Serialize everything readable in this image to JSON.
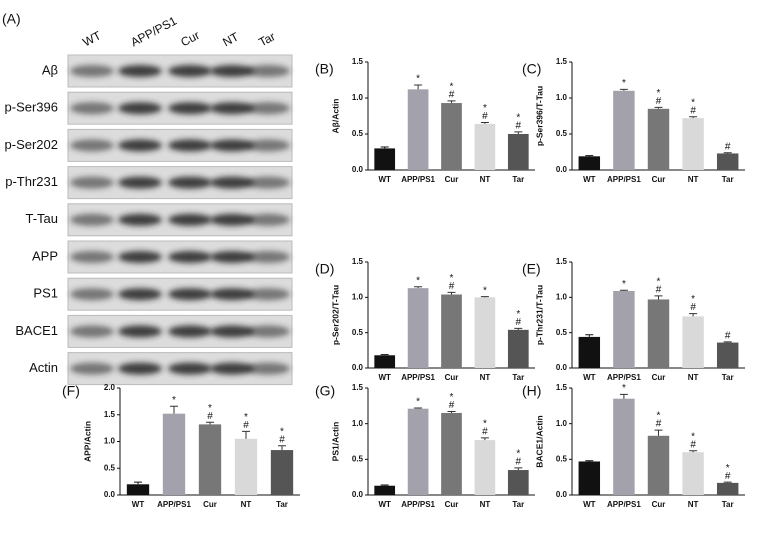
{
  "blot": {
    "panel": "(A)",
    "lanes": [
      "WT",
      "APP/PS1",
      "Cur",
      "NT",
      "Tar"
    ],
    "rows": [
      "Aβ",
      "p-Ser396",
      "p-Ser202",
      "p-Thr231",
      "T-Tau",
      "APP",
      "PS1",
      "BACE1",
      "Actin"
    ]
  },
  "chart_data": [
    {
      "type": "bar",
      "panel": "(B)",
      "ylabel": "Aβ/Actin",
      "categories": [
        "WT",
        "APP/PS1",
        "Cur",
        "NT",
        "Tar"
      ],
      "colors": [
        "#111111",
        "#a3a1ab",
        "#777777",
        "#d9d9d9",
        "#555555"
      ],
      "values": [
        0.3,
        1.12,
        0.93,
        0.64,
        0.5
      ],
      "errors": [
        0.02,
        0.06,
        0.03,
        0.02,
        0.03
      ],
      "annotations": [
        [],
        [
          "*"
        ],
        [
          "*",
          "#"
        ],
        [
          "*",
          "#"
        ],
        [
          "*",
          "#"
        ]
      ],
      "ylim": [
        0,
        1.5
      ],
      "yticks": [
        {
          "value": 0,
          "label": "0.0"
        },
        0.5,
        {
          "value": 1,
          "label": "1.0"
        },
        1.5
      ]
    },
    {
      "type": "bar",
      "panel": "(C)",
      "ylabel": "p-Ser396/T-Tau",
      "categories": [
        "WT",
        "APP/PS1",
        "Cur",
        "NT",
        "Tar"
      ],
      "colors": [
        "#111111",
        "#a3a1ab",
        "#777777",
        "#d9d9d9",
        "#555555"
      ],
      "values": [
        0.19,
        1.1,
        0.85,
        0.72,
        0.23
      ],
      "errors": [
        0.01,
        0.02,
        0.02,
        0.02,
        0.01
      ],
      "annotations": [
        [],
        [
          "*"
        ],
        [
          "*",
          "#"
        ],
        [
          "*",
          "#"
        ],
        [
          "#"
        ]
      ],
      "ylim": [
        0,
        1.5
      ],
      "yticks": [
        {
          "value": 0,
          "label": "0.0"
        },
        0.5,
        {
          "value": 1,
          "label": "1.0"
        },
        1.5
      ]
    },
    {
      "type": "bar",
      "panel": "(D)",
      "ylabel": "p-Ser202/T-Tau",
      "categories": [
        "WT",
        "APP/PS1",
        "Cur",
        "NT",
        "Tar"
      ],
      "colors": [
        "#111111",
        "#a3a1ab",
        "#777777",
        "#d9d9d9",
        "#555555"
      ],
      "values": [
        0.18,
        1.13,
        1.04,
        1.0,
        0.54
      ],
      "errors": [
        0.01,
        0.02,
        0.03,
        0.01,
        0.02
      ],
      "annotations": [
        [],
        [
          "*"
        ],
        [
          "*",
          "#"
        ],
        [
          "*"
        ],
        [
          "*",
          "#"
        ]
      ],
      "ylim": [
        0,
        1.5
      ],
      "yticks": [
        {
          "value": 0,
          "label": "0.0"
        },
        0.5,
        {
          "value": 1,
          "label": "1.0"
        },
        1.5
      ]
    },
    {
      "type": "bar",
      "panel": "(E)",
      "ylabel": "p-Thr231/T-Tau",
      "categories": [
        "WT",
        "APP/PS1",
        "Cur",
        "NT",
        "Tar"
      ],
      "colors": [
        "#111111",
        "#a3a1ab",
        "#777777",
        "#d9d9d9",
        "#555555"
      ],
      "values": [
        0.44,
        1.09,
        0.97,
        0.73,
        0.36
      ],
      "errors": [
        0.03,
        0.01,
        0.05,
        0.04,
        0.01
      ],
      "annotations": [
        [],
        [
          "*"
        ],
        [
          "*",
          "#"
        ],
        [
          "*",
          "#"
        ],
        [
          "#"
        ]
      ],
      "ylim": [
        0,
        1.5
      ],
      "yticks": [
        {
          "value": 0,
          "label": "0.0"
        },
        0.5,
        {
          "value": 1,
          "label": "1.0"
        },
        1.5
      ]
    },
    {
      "type": "bar",
      "panel": "(F)",
      "ylabel": "APP/Actin",
      "categories": [
        "WT",
        "APP/PS1",
        "Cur",
        "NT",
        "Tar"
      ],
      "colors": [
        "#111111",
        "#a3a1ab",
        "#777777",
        "#d9d9d9",
        "#555555"
      ],
      "values": [
        0.2,
        1.52,
        1.32,
        1.05,
        0.84
      ],
      "errors": [
        0.04,
        0.14,
        0.04,
        0.14,
        0.08
      ],
      "annotations": [
        [],
        [
          "*"
        ],
        [
          "*",
          "#"
        ],
        [
          "*",
          "#"
        ],
        [
          "*",
          "#"
        ]
      ],
      "ylim": [
        0,
        2
      ],
      "yticks": [
        {
          "value": 0,
          "label": "0.0"
        },
        0.5,
        {
          "value": 1,
          "label": "1.0"
        },
        1.5,
        {
          "value": 2,
          "label": "2.0"
        }
      ]
    },
    {
      "type": "bar",
      "panel": "(G)",
      "ylabel": "PS1/Actin",
      "categories": [
        "WT",
        "APP/PS1",
        "Cur",
        "NT",
        "Tar"
      ],
      "colors": [
        "#111111",
        "#a3a1ab",
        "#777777",
        "#d9d9d9",
        "#555555"
      ],
      "values": [
        0.13,
        1.21,
        1.15,
        0.77,
        0.35
      ],
      "errors": [
        0.01,
        0.01,
        0.02,
        0.03,
        0.03
      ],
      "annotations": [
        [],
        [
          "*"
        ],
        [
          "*",
          "#"
        ],
        [
          "*",
          "#"
        ],
        [
          "*",
          "#"
        ]
      ],
      "ylim": [
        0,
        1.5
      ],
      "yticks": [
        {
          "value": 0,
          "label": "0.0"
        },
        0.5,
        {
          "value": 1,
          "label": "1.0"
        },
        1.5
      ]
    },
    {
      "type": "bar",
      "panel": "(H)",
      "ylabel": "BACE1/Actin",
      "categories": [
        "WT",
        "APP/PS1",
        "Cur",
        "NT",
        "Tar"
      ],
      "colors": [
        "#111111",
        "#a3a1ab",
        "#777777",
        "#d9d9d9",
        "#555555"
      ],
      "values": [
        0.47,
        1.35,
        0.83,
        0.6,
        0.17
      ],
      "errors": [
        0.01,
        0.06,
        0.08,
        0.02,
        0.01
      ],
      "annotations": [
        [],
        [
          "*"
        ],
        [
          "*",
          "#"
        ],
        [
          "*",
          "#"
        ],
        [
          "*",
          "#"
        ]
      ],
      "ylim": [
        0,
        1.5
      ],
      "yticks": [
        {
          "value": 0,
          "label": "0.0"
        },
        0.5,
        {
          "value": 1,
          "label": "1.0"
        },
        1.5
      ]
    }
  ]
}
